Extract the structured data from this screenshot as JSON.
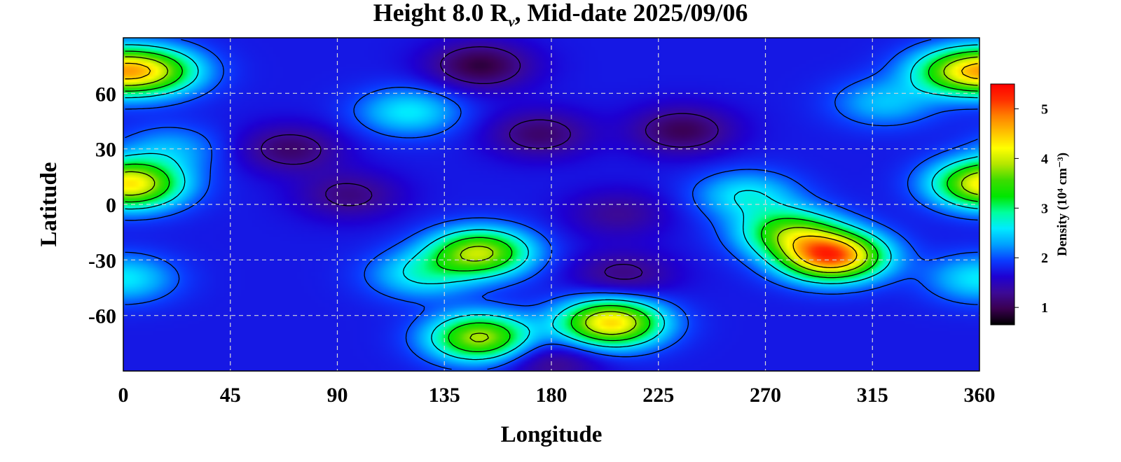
{
  "chart_data": {
    "type": "heatmap",
    "title": {
      "prefix": "Height 8.0 R",
      "subscript": "ν",
      "suffix": ", Mid-date 2025/09/06"
    },
    "xlabel": "Longitude",
    "ylabel": "Latitude",
    "xlim": [
      0,
      360
    ],
    "ylim": [
      -90,
      90
    ],
    "x_ticks": [
      0,
      45,
      90,
      135,
      180,
      225,
      270,
      315,
      360
    ],
    "y_ticks": [
      60,
      30,
      0,
      -30,
      -60
    ],
    "y_tick_labels": [
      "60",
      "30",
      "0",
      "-30",
      "-60"
    ],
    "grid": true,
    "colorbar": {
      "label": "Density (10⁴ cm⁻³)",
      "range": [
        0.65,
        5.5
      ],
      "ticks": [
        1,
        2,
        3,
        4,
        5
      ],
      "colormap": [
        "#000000",
        "#3a0050",
        "#3c0a96",
        "#1e00d2",
        "#0a3cff",
        "#00a0ff",
        "#00ebff",
        "#00ff9c",
        "#00e600",
        "#3cdc00",
        "#b4e600",
        "#ffff00",
        "#ffc000",
        "#ff8000",
        "#ff3000",
        "#ff0000"
      ]
    },
    "features": [
      {
        "lon": 298,
        "lat": -28,
        "value": 5.0,
        "kind": "max"
      },
      {
        "lon": 280,
        "lat": -15,
        "value": 3.4
      },
      {
        "lon": 262,
        "lat": 5,
        "value": 2.6
      },
      {
        "lon": 205,
        "lat": -64,
        "value": 4.4,
        "kind": "local max"
      },
      {
        "lon": 150,
        "lat": -72,
        "value": 3.9
      },
      {
        "lon": 150,
        "lat": -26,
        "value": 3.9
      },
      {
        "lon": 125,
        "lat": -38,
        "value": 2.6
      },
      {
        "lon": 12,
        "lat": 72,
        "value": 3.6
      },
      {
        "lon": 352,
        "lat": 72,
        "value": 3.6
      },
      {
        "lon": 5,
        "lat": 10,
        "value": 3.1
      },
      {
        "lon": 360,
        "lat": 12,
        "value": 3.0
      },
      {
        "lon": 20,
        "lat": 30,
        "value": 2.3
      },
      {
        "lon": 150,
        "lat": 75,
        "value": 0.9,
        "kind": "min"
      },
      {
        "lon": 235,
        "lat": 40,
        "value": 1.0
      },
      {
        "lon": 70,
        "lat": 30,
        "value": 1.1
      },
      {
        "lon": 95,
        "lat": 5,
        "value": 1.2
      },
      {
        "lon": 175,
        "lat": 38,
        "value": 1.1
      },
      {
        "lon": 210,
        "lat": -38,
        "value": 1.2
      },
      {
        "lon": 208,
        "lat": -5,
        "value": 1.3
      },
      {
        "lon": 120,
        "lat": 50,
        "value": 2.6
      },
      {
        "lon": 320,
        "lat": 55,
        "value": 2.4
      },
      {
        "lon": 0,
        "lat": -40,
        "value": 2.6
      },
      {
        "lon": 180,
        "lat": -85,
        "value": 1.2
      }
    ]
  }
}
